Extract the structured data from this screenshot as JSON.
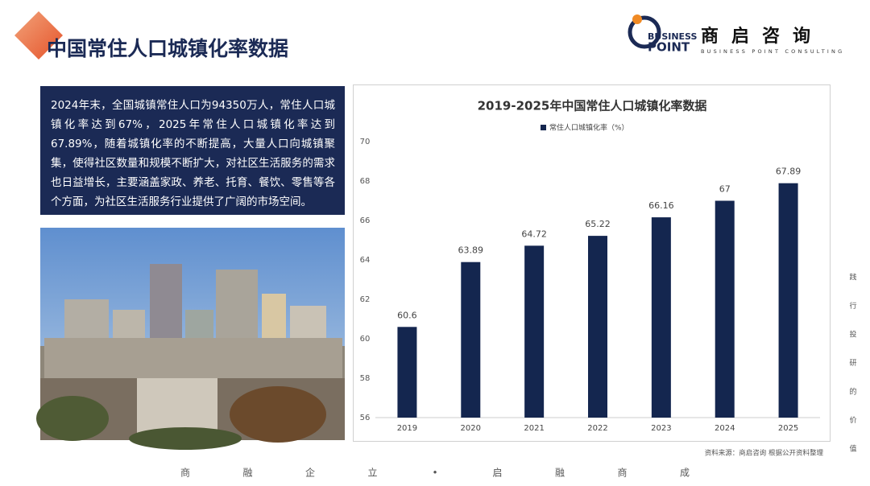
{
  "header": {
    "title": "中国常住人口城镇化率数据",
    "logo_mark": "BUSINESS",
    "logo_mark2": "POINT",
    "logo_cn": "商启咨询",
    "logo_en": "BUSINESS POINT CONSULTING"
  },
  "summary": "2024年末，全国城镇常住人口为94350万人，常住人口城镇化率达到67%，2025年常住人口城镇化率达到67.89%，随着城镇化率的不断提高，大量人口向城镇聚集，使得社区数量和规模不断扩大，对社区生活服务的需求也日益增长，主要涵盖家政、养老、托育、餐饮、零售等各个方面，为社区生活服务行业提供了广阔的市场空间。",
  "chart_data": {
    "type": "bar",
    "title": "2019-2025年中国常住人口城镇化率数据",
    "categories": [
      "2019",
      "2020",
      "2021",
      "2022",
      "2023",
      "2024",
      "2025"
    ],
    "series": [
      {
        "name": "常住人口城镇化率（%）",
        "color": "#14264f",
        "values": [
          60.6,
          63.89,
          64.72,
          65.22,
          66.16,
          67,
          67.89
        ]
      }
    ],
    "ylim": [
      56,
      70
    ],
    "yticks": [
      56,
      58,
      60,
      62,
      64,
      66,
      68,
      70
    ],
    "grid": false,
    "legend": "top"
  },
  "source": "资料来源：商启咨询 根据公开资料整理",
  "side_text": [
    "践",
    "行",
    "投",
    "研",
    "的",
    "价",
    "值"
  ],
  "footer": [
    "商",
    "融",
    "企",
    "立",
    "•",
    "启",
    "融",
    "商",
    "成"
  ]
}
